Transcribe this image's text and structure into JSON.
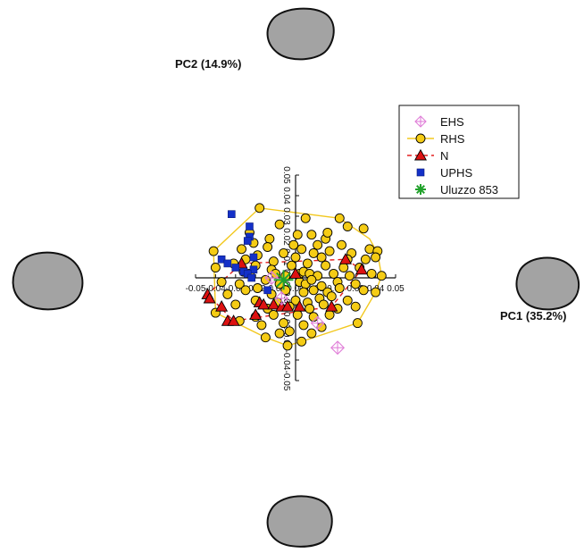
{
  "chart_data": {
    "type": "scatter",
    "axes": {
      "x_label": "PC1 (35.2%)",
      "y_label": "PC2 (14.9%)",
      "xlim": [
        -0.05,
        0.05
      ],
      "ylim": [
        -0.05,
        0.05
      ],
      "x_ticks": [
        {
          "value": -0.05,
          "label": "-0.05"
        },
        {
          "value": -0.04,
          "label": "-0.04"
        },
        {
          "value": -0.03,
          "label": "-0.03"
        },
        {
          "value": -0.02,
          "label": "-0.02"
        },
        {
          "value": -0.01,
          "label": "-0.01"
        },
        {
          "value": 0.0,
          "label": "0.00"
        },
        {
          "value": 0.01,
          "label": "0.01"
        },
        {
          "value": 0.02,
          "label": "0.02"
        },
        {
          "value": 0.03,
          "label": "0.03"
        },
        {
          "value": 0.04,
          "label": "0.04"
        },
        {
          "value": 0.05,
          "label": "0.05"
        }
      ],
      "y_ticks": [
        {
          "value": -0.05,
          "label": "-0.05"
        },
        {
          "value": -0.04,
          "label": "-0.04"
        },
        {
          "value": -0.03,
          "label": "-0.03"
        },
        {
          "value": -0.02,
          "label": "-0.02"
        },
        {
          "value": -0.01,
          "label": "-0.01"
        },
        {
          "value": 0.0,
          "label": "0.00"
        },
        {
          "value": 0.01,
          "label": "0.01"
        },
        {
          "value": 0.02,
          "label": "0.02"
        },
        {
          "value": 0.03,
          "label": "0.03"
        },
        {
          "value": 0.04,
          "label": "0.04"
        },
        {
          "value": 0.05,
          "label": "0.05"
        }
      ],
      "grid": false
    },
    "legend_position": "top-right",
    "series": [
      {
        "name": "EHS",
        "marker": "diamond-plus",
        "color": "#e07fd8",
        "fill": "none",
        "points": [
          [
            -0.012,
            0.0
          ],
          [
            0.011,
            -0.022
          ],
          [
            0.021,
            -0.034
          ],
          [
            -0.007,
            -0.01
          ]
        ]
      },
      {
        "name": "RHS",
        "marker": "circle",
        "color": "#000000",
        "fill": "#f5cc15",
        "hull_color": "#f2c81e",
        "hull": [
          [
            -0.041,
            0.013
          ],
          [
            -0.018,
            0.034
          ],
          [
            0.022,
            0.029
          ],
          [
            0.037,
            0.019
          ],
          [
            0.041,
            0.012
          ],
          [
            0.043,
            0.001
          ],
          [
            0.04,
            -0.007
          ],
          [
            0.031,
            -0.022
          ],
          [
            0.003,
            -0.031
          ],
          [
            -0.004,
            -0.033
          ],
          [
            -0.015,
            -0.029
          ],
          [
            -0.04,
            -0.017
          ]
        ],
        "points": [
          [
            -0.018,
            0.034
          ],
          [
            -0.008,
            0.026
          ],
          [
            0.005,
            0.029
          ],
          [
            0.022,
            0.029
          ],
          [
            0.026,
            0.025
          ],
          [
            0.034,
            0.024
          ],
          [
            -0.023,
            0.022
          ],
          [
            -0.013,
            0.019
          ],
          [
            0.001,
            0.021
          ],
          [
            0.008,
            0.021
          ],
          [
            0.015,
            0.019
          ],
          [
            0.016,
            0.022
          ],
          [
            -0.021,
            0.017
          ],
          [
            -0.014,
            0.015
          ],
          [
            -0.001,
            0.016
          ],
          [
            0.011,
            0.016
          ],
          [
            0.023,
            0.016
          ],
          [
            0.037,
            0.014
          ],
          [
            0.041,
            0.013
          ],
          [
            -0.041,
            0.013
          ],
          [
            -0.027,
            0.014
          ],
          [
            -0.019,
            0.011
          ],
          [
            -0.006,
            0.012
          ],
          [
            0.003,
            0.014
          ],
          [
            0.009,
            0.012
          ],
          [
            0.017,
            0.013
          ],
          [
            0.028,
            0.012
          ],
          [
            -0.025,
            0.009
          ],
          [
            -0.011,
            0.008
          ],
          [
            0.0,
            0.01
          ],
          [
            0.013,
            0.01
          ],
          [
            0.026,
            0.009
          ],
          [
            0.035,
            0.009
          ],
          [
            0.04,
            0.01
          ],
          [
            -0.04,
            0.005
          ],
          [
            -0.031,
            0.007
          ],
          [
            -0.02,
            0.006
          ],
          [
            -0.012,
            0.004
          ],
          [
            -0.002,
            0.006
          ],
          [
            0.006,
            0.007
          ],
          [
            0.015,
            0.006
          ],
          [
            0.024,
            0.005
          ],
          [
            0.032,
            0.005
          ],
          [
            0.043,
            0.001
          ],
          [
            -0.026,
            0.003
          ],
          [
            -0.023,
            0.002
          ],
          [
            -0.01,
            0.002
          ],
          [
            -0.005,
            0.001
          ],
          [
            0.002,
            0.002
          ],
          [
            0.004,
            0.003
          ],
          [
            0.007,
            0.002
          ],
          [
            0.011,
            0.001
          ],
          [
            0.019,
            0.002
          ],
          [
            0.027,
            0.001
          ],
          [
            0.038,
            0.002
          ],
          [
            -0.037,
            -0.002
          ],
          [
            -0.028,
            -0.003
          ],
          [
            -0.015,
            -0.001
          ],
          [
            -0.008,
            -0.003
          ],
          [
            0.002,
            -0.002
          ],
          [
            0.005,
            -0.003
          ],
          [
            0.008,
            -0.001
          ],
          [
            0.013,
            -0.004
          ],
          [
            0.021,
            -0.002
          ],
          [
            0.03,
            -0.003
          ],
          [
            -0.034,
            -0.008
          ],
          [
            -0.025,
            -0.006
          ],
          [
            -0.019,
            -0.005
          ],
          [
            -0.012,
            -0.008
          ],
          [
            -0.005,
            -0.006
          ],
          [
            0.004,
            -0.007
          ],
          [
            0.009,
            -0.006
          ],
          [
            0.016,
            -0.007
          ],
          [
            0.022,
            -0.005
          ],
          [
            0.034,
            -0.006
          ],
          [
            0.04,
            -0.007
          ],
          [
            -0.02,
            -0.011
          ],
          [
            -0.009,
            -0.012
          ],
          [
            0.0,
            -0.011
          ],
          [
            0.006,
            -0.012
          ],
          [
            0.012,
            -0.01
          ],
          [
            0.018,
            -0.009
          ],
          [
            0.026,
            -0.011
          ],
          [
            -0.03,
            -0.013
          ],
          [
            -0.014,
            -0.015
          ],
          [
            -0.003,
            -0.014
          ],
          [
            0.007,
            -0.015
          ],
          [
            0.014,
            -0.013
          ],
          [
            0.021,
            -0.015
          ],
          [
            0.03,
            -0.014
          ],
          [
            -0.04,
            -0.017
          ],
          [
            -0.02,
            -0.019
          ],
          [
            -0.011,
            -0.018
          ],
          [
            0.001,
            -0.018
          ],
          [
            0.009,
            -0.019
          ],
          [
            0.017,
            -0.018
          ],
          [
            -0.028,
            -0.021
          ],
          [
            -0.017,
            -0.023
          ],
          [
            -0.006,
            -0.022
          ],
          [
            0.004,
            -0.023
          ],
          [
            0.013,
            -0.024
          ],
          [
            0.031,
            -0.022
          ],
          [
            -0.008,
            -0.027
          ],
          [
            -0.003,
            -0.026
          ],
          [
            0.008,
            -0.027
          ],
          [
            -0.015,
            -0.029
          ],
          [
            -0.004,
            -0.033
          ],
          [
            0.003,
            -0.031
          ]
        ]
      },
      {
        "name": "N",
        "marker": "triangle",
        "color": "#000000",
        "fill": "#dd1111",
        "hull_color": "#e32020",
        "hull": [
          [
            -0.027,
            0.007
          ],
          [
            0.025,
            0.009
          ],
          [
            0.033,
            0.004
          ],
          [
            0.018,
            -0.014
          ],
          [
            -0.031,
            -0.021
          ],
          [
            -0.044,
            -0.008
          ]
        ],
        "points": [
          [
            -0.027,
            0.007
          ],
          [
            0.025,
            0.009
          ],
          [
            0.033,
            0.004
          ],
          [
            0.0,
            0.002
          ],
          [
            -0.044,
            -0.008
          ],
          [
            -0.043,
            -0.01
          ],
          [
            -0.037,
            -0.014
          ],
          [
            -0.034,
            -0.021
          ],
          [
            -0.031,
            -0.021
          ],
          [
            -0.018,
            -0.012
          ],
          [
            -0.02,
            -0.018
          ],
          [
            -0.016,
            -0.013
          ],
          [
            -0.011,
            -0.013
          ],
          [
            -0.007,
            -0.014
          ],
          [
            -0.004,
            -0.014
          ],
          [
            0.002,
            -0.014
          ],
          [
            0.018,
            -0.014
          ]
        ]
      },
      {
        "name": "UPHS",
        "marker": "square",
        "color": "#1430c8",
        "fill": "#1430c8",
        "points": [
          [
            -0.032,
            0.031
          ],
          [
            -0.023,
            0.025
          ],
          [
            -0.023,
            0.02
          ],
          [
            -0.024,
            0.018
          ],
          [
            -0.021,
            0.01
          ],
          [
            -0.037,
            0.009
          ],
          [
            -0.034,
            0.007
          ],
          [
            -0.03,
            0.005
          ],
          [
            -0.021,
            0.004
          ],
          [
            -0.026,
            0.003
          ],
          [
            -0.024,
            0.002
          ],
          [
            -0.022,
            0.0
          ],
          [
            -0.014,
            -0.006
          ]
        ]
      },
      {
        "name": "Uluzzo 853",
        "marker": "asterisk",
        "color": "#22a22c",
        "fill": "none",
        "points": [
          [
            -0.006,
            -0.001
          ]
        ]
      }
    ]
  },
  "decoration": {
    "blob_fill": "#a3a3a3",
    "blob_stroke": "#111111"
  }
}
